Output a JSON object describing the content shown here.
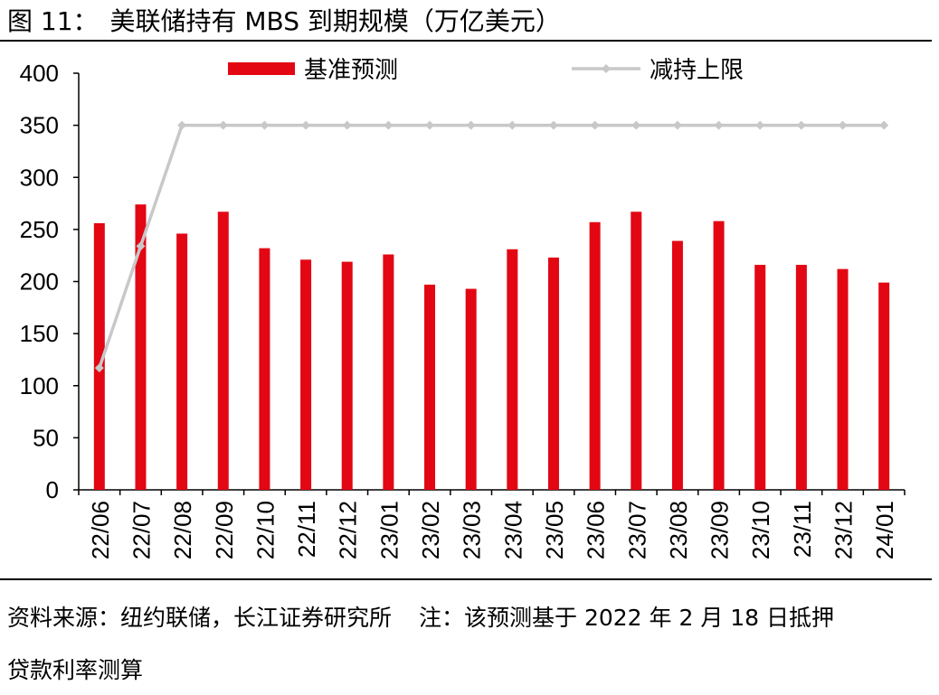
{
  "header": {
    "figure_label": "图",
    "figure_number": "11：",
    "title": "美联储持有 MBS 到期规模（万亿美元）"
  },
  "chart_data": {
    "type": "bar+line",
    "categories": [
      "22/06",
      "22/07",
      "22/08",
      "22/09",
      "22/10",
      "22/11",
      "22/12",
      "23/01",
      "23/02",
      "23/03",
      "23/04",
      "23/05",
      "23/06",
      "23/07",
      "23/08",
      "23/09",
      "23/10",
      "23/11",
      "23/12",
      "24/01"
    ],
    "series": [
      {
        "name": "基准预测",
        "type": "bar",
        "color": "#e30613",
        "values": [
          256,
          274,
          246,
          267,
          232,
          221,
          219,
          226,
          197,
          193,
          231,
          223,
          257,
          267,
          239,
          258,
          216,
          216,
          212,
          199
        ]
      },
      {
        "name": "减持上限",
        "type": "line",
        "color": "#c8c8c8",
        "values": [
          117,
          234,
          350,
          350,
          350,
          350,
          350,
          350,
          350,
          350,
          350,
          350,
          350,
          350,
          350,
          350,
          350,
          350,
          350,
          350
        ]
      }
    ],
    "yticks": [
      "0",
      "50",
      "100",
      "150",
      "200",
      "250",
      "300",
      "350",
      "400"
    ],
    "ylim": [
      0,
      400
    ],
    "xlabel": "",
    "ylabel": ""
  },
  "footer": {
    "source": "资料来源：纽约联储，长江证券研究所",
    "note_line1": "注：该预测基于 2022 年 2 月 18 日抵押",
    "note_line2": "贷款利率测算"
  }
}
